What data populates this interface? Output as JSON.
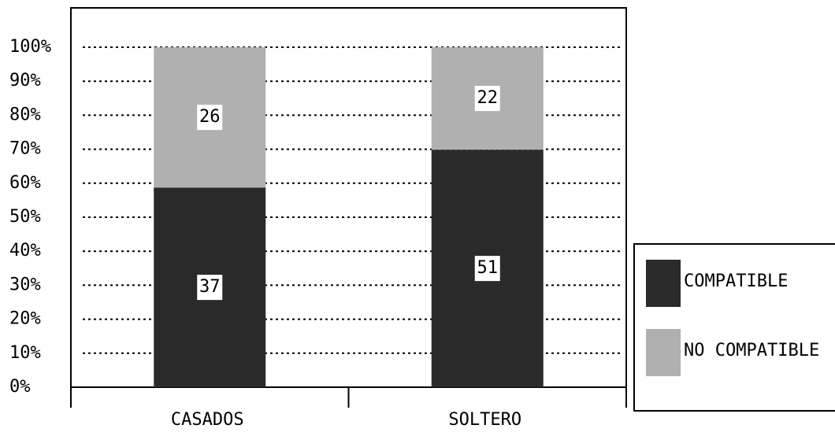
{
  "chart_data": {
    "type": "stacked_percent_bar",
    "categories": [
      "CASADOS",
      "SOLTERO"
    ],
    "series": [
      {
        "name": "COMPATIBLE",
        "color": "#2a2a2a",
        "values": [
          37,
          51
        ]
      },
      {
        "name": "NO COMPATIBLE",
        "color": "#b0b0b0",
        "values": [
          26,
          22
        ]
      }
    ],
    "ylim": [
      0,
      100
    ],
    "yticks": [
      {
        "value": 0,
        "label": "0%"
      },
      {
        "value": 10,
        "label": "10%"
      },
      {
        "value": 20,
        "label": "20%"
      },
      {
        "value": 30,
        "label": "30%"
      },
      {
        "value": 40,
        "label": "40%"
      },
      {
        "value": 50,
        "label": "50%"
      },
      {
        "value": 60,
        "label": "60%"
      },
      {
        "value": 70,
        "label": "70%"
      },
      {
        "value": 80,
        "label": "80%"
      },
      {
        "value": 90,
        "label": "90%"
      },
      {
        "value": 100,
        "label": "100%"
      }
    ],
    "grid": true
  }
}
